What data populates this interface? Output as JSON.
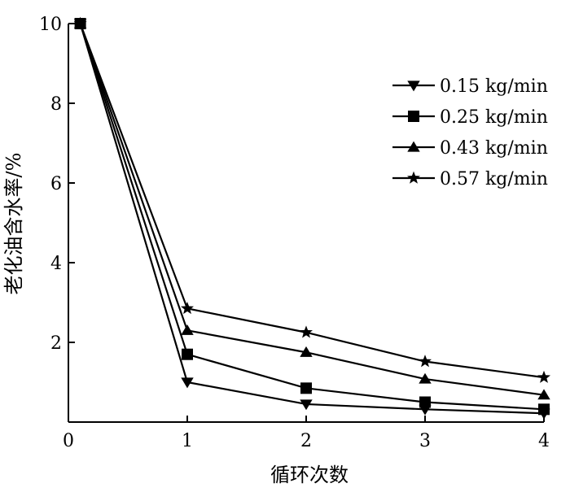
{
  "chart_data": {
    "type": "line",
    "xlabel": "循环次数",
    "ylabel": "老化油含水率/%",
    "x": [
      0,
      1,
      2,
      3,
      4
    ],
    "xticks": [
      "0",
      "1",
      "2",
      "3",
      "4"
    ],
    "yticks": [
      "2",
      "4",
      "6",
      "8",
      "10"
    ],
    "xlim": [
      0,
      4
    ],
    "ylim": [
      0,
      10
    ],
    "grid": false,
    "legend_position": "top-right",
    "series": [
      {
        "name": "0.15 kg/min",
        "marker": "triangle-down",
        "x": [
          0.1,
          1,
          2,
          3,
          4
        ],
        "values": [
          10,
          1.0,
          0.45,
          0.32,
          0.22
        ]
      },
      {
        "name": "0.25 kg/min",
        "marker": "square",
        "x": [
          0.1,
          1,
          2,
          3,
          4
        ],
        "values": [
          10,
          1.7,
          0.85,
          0.5,
          0.32
        ]
      },
      {
        "name": "0.43 kg/min",
        "marker": "triangle-up",
        "x": [
          0.1,
          1,
          2,
          3,
          4
        ],
        "values": [
          10,
          2.3,
          1.75,
          1.08,
          0.68
        ]
      },
      {
        "name": "0.57 kg/min",
        "marker": "star",
        "x": [
          0.1,
          1,
          2,
          3,
          4
        ],
        "values": [
          10,
          2.85,
          2.25,
          1.52,
          1.12
        ]
      }
    ]
  }
}
